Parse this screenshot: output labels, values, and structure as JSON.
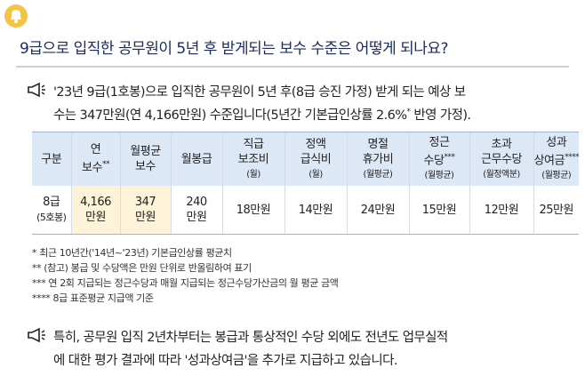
{
  "header": {
    "title": "9급으로 입직한 공무원이 5년 후 받게되는 보수 수준은 어떻게 되나요?"
  },
  "intro": {
    "lines": [
      "'23년 9급(1호봉)으로 입직한 공무원이 5년 후(8급 승진 가정) 받게 되는 예상 보",
      "수는 347만원(연 4,166만원) 수준입니다(5년간 기본급인상률 2.6%"
    ],
    "sup": "*",
    "tail": " 반영 가정)."
  },
  "table": {
    "header": [
      {
        "lines": [
          "구분"
        ]
      },
      {
        "lines": [
          "연",
          "보수"
        ],
        "sup": "**"
      },
      {
        "lines": [
          "월평균",
          "보수"
        ]
      },
      {
        "lines": [
          "월봉급"
        ]
      },
      {
        "lines": [
          "직급",
          "보조비"
        ],
        "note": "(월)"
      },
      {
        "lines": [
          "정액",
          "급식비"
        ],
        "note": "(월)"
      },
      {
        "lines": [
          "명절",
          "휴가비"
        ],
        "note": "(월평균)"
      },
      {
        "lines": [
          "정근",
          "수당"
        ],
        "sup": "***",
        "note": "(월평균)"
      },
      {
        "lines": [
          "초과",
          "근무수당"
        ],
        "note": "(월정액분)"
      },
      {
        "lines": [
          "성과",
          "상여금"
        ],
        "sup": "****",
        "note": "(월평균)"
      }
    ],
    "rows": [
      [
        [
          "8급",
          "(5호봉)"
        ],
        [
          "4,166",
          "만원"
        ],
        [
          "347",
          "만원"
        ],
        [
          "240",
          "만원"
        ],
        [
          "18만원"
        ],
        [
          "14만원"
        ],
        [
          "24만원"
        ],
        [
          "15만원"
        ],
        [
          "12만원"
        ],
        [
          "25만원"
        ]
      ]
    ]
  },
  "footnotes": [
    "* 최근 10년간('14년~'23년) 기본급인상률 평균치",
    "** (참고) 봉급 및 수당액은 만원 단위로 반올림하여 표기",
    "*** 연 2회 지급되는 정근수당과 매월 지급되는 정근수당가산금의 월 평균 금액",
    "**** 8급 표준평균 지급액 기준"
  ],
  "closing": {
    "lines": [
      "특히, 공무원 입직 2년차부터는 봉급과 통상적인 수당 외에도 전년도 업무실적",
      "에 대한 평가 결과에 따라 '성과상여금'을 추가로 지급하고 있습니다."
    ]
  }
}
